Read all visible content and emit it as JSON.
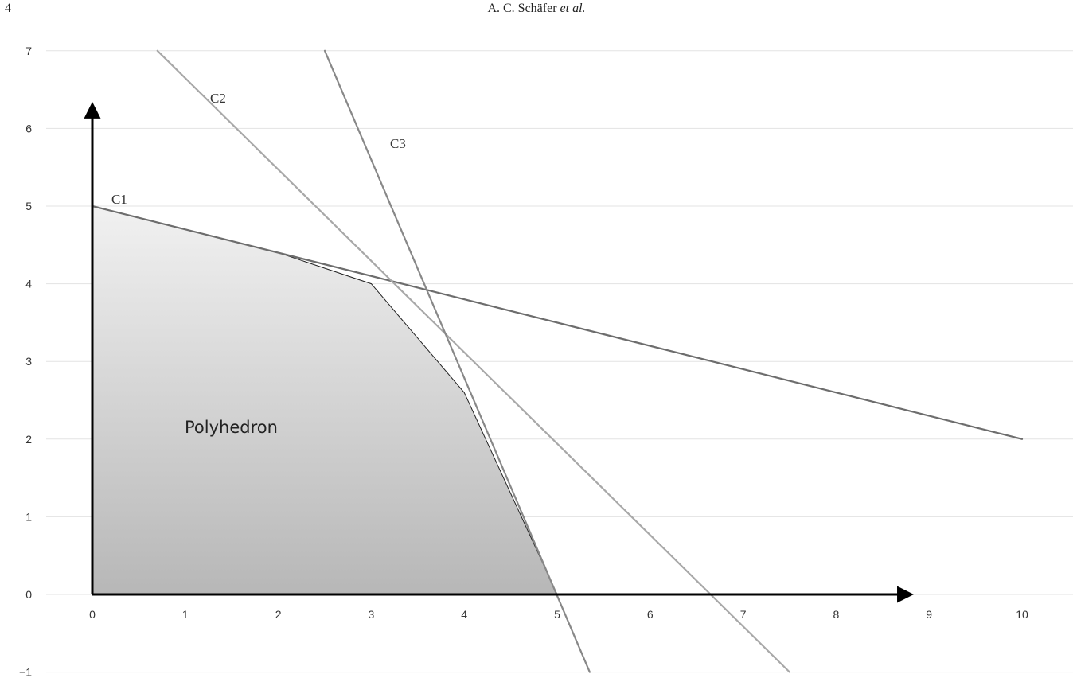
{
  "page": {
    "number": "4",
    "header_authors": "A. C. Schäfer",
    "header_etal": "et al."
  },
  "chart_data": {
    "type": "line",
    "xlim": [
      0,
      10
    ],
    "ylim": [
      -1,
      7
    ],
    "x_ticks": [
      "0",
      "1",
      "2",
      "3",
      "4",
      "5",
      "6",
      "7",
      "8",
      "9",
      "10"
    ],
    "y_ticks": [
      "7",
      "6",
      "5",
      "4",
      "3",
      "2",
      "1",
      "0",
      "−1"
    ],
    "grid": true,
    "legend": "none",
    "series": [
      {
        "name": "C1",
        "points": [
          [
            0,
            5
          ],
          [
            10,
            2
          ]
        ],
        "color": "#6d6d6d"
      },
      {
        "name": "C2",
        "points": [
          [
            0.7,
            7
          ],
          [
            7.5,
            -1
          ]
        ],
        "color": "#a8a8a8"
      },
      {
        "name": "C3",
        "points": [
          [
            2.5,
            7
          ],
          [
            5.35,
            -1
          ]
        ],
        "color": "#888888"
      }
    ],
    "region": {
      "label": "Polyhedron",
      "vertices": [
        [
          0,
          0
        ],
        [
          0,
          5
        ],
        [
          2,
          4.4
        ],
        [
          3,
          4
        ],
        [
          4,
          2.6
        ],
        [
          5,
          0
        ]
      ]
    },
    "axis_arrows": {
      "x_end": 8.8,
      "y_end": 6.3
    },
    "colors": {
      "grid": "#e3e3e3",
      "axis": "#000000",
      "fill_top": "#f1f1f1",
      "fill_bottom": "#b7b7b7"
    }
  }
}
